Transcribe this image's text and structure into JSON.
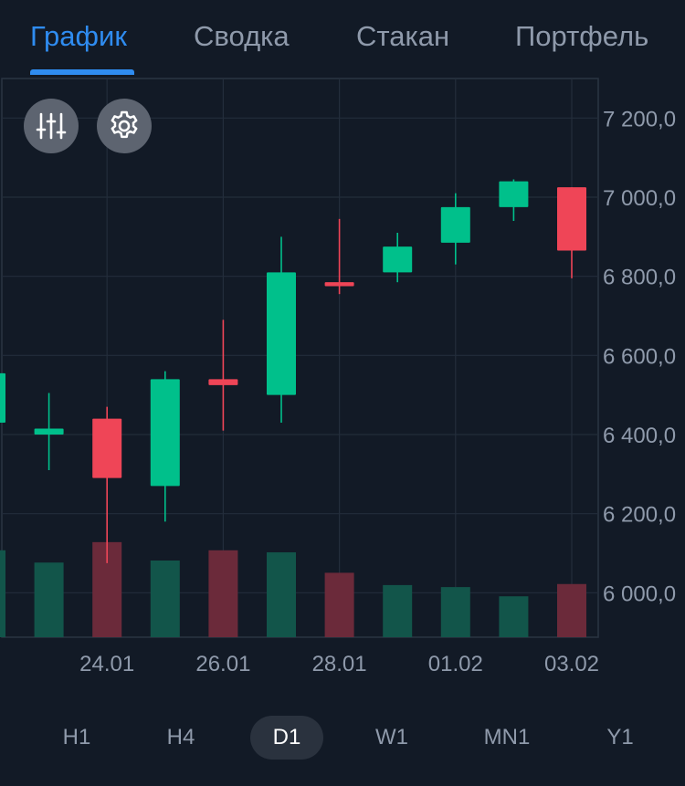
{
  "tabs": [
    {
      "label": "График",
      "active": true
    },
    {
      "label": "Сводка",
      "active": false
    },
    {
      "label": "Стакан",
      "active": false
    },
    {
      "label": "Портфель",
      "active": false
    }
  ],
  "tools": {
    "indicators_icon": "sliders-icon",
    "settings_icon": "gear-icon"
  },
  "timeframes": [
    {
      "label": "H1",
      "active": false
    },
    {
      "label": "H4",
      "active": false
    },
    {
      "label": "D1",
      "active": true
    },
    {
      "label": "W1",
      "active": false
    },
    {
      "label": "MN1",
      "active": false
    },
    {
      "label": "Y1",
      "active": false
    }
  ],
  "colors": {
    "up": "#00c08b",
    "down": "#ef4557",
    "up_volume": "#12554a",
    "down_volume": "#6b2a3a",
    "accent": "#2f8cf0"
  },
  "chart_data": {
    "type": "candlestick",
    "y_ticks": [
      "7 200,0",
      "7 000,0",
      "6 800,0",
      "6 600,0",
      "6 400,0",
      "6 200,0",
      "6 000,0"
    ],
    "y_tick_values": [
      7200,
      7000,
      6800,
      6600,
      6400,
      6200,
      6000
    ],
    "ylim": [
      5920,
      7300
    ],
    "x_labels": [
      "24.01",
      "26.01",
      "28.01",
      "01.02",
      "03.02"
    ],
    "grid": true,
    "candles": [
      {
        "open": 6430,
        "high": 6560,
        "low": 6420,
        "close": 6555,
        "volume": 0.85
      },
      {
        "open": 6400,
        "high": 6505,
        "low": 6310,
        "close": 6415,
        "volume": 0.73
      },
      {
        "open": 6440,
        "high": 6470,
        "low": 6075,
        "close": 6290,
        "volume": 0.93
      },
      {
        "open": 6270,
        "high": 6560,
        "low": 6180,
        "close": 6540,
        "volume": 0.75
      },
      {
        "open": 6540,
        "high": 6690,
        "low": 6410,
        "close": 6525,
        "volume": 0.85
      },
      {
        "open": 6500,
        "high": 6900,
        "low": 6430,
        "close": 6810,
        "volume": 0.83
      },
      {
        "open": 6785,
        "high": 6945,
        "low": 6755,
        "close": 6775,
        "volume": 0.63
      },
      {
        "open": 6810,
        "high": 6910,
        "low": 6785,
        "close": 6875,
        "volume": 0.51
      },
      {
        "open": 6885,
        "high": 7010,
        "low": 6830,
        "close": 6975,
        "volume": 0.49
      },
      {
        "open": 6975,
        "high": 7045,
        "low": 6940,
        "close": 7040,
        "volume": 0.4
      },
      {
        "open": 7025,
        "high": 7025,
        "low": 6795,
        "close": 6865,
        "volume": 0.52
      }
    ]
  }
}
